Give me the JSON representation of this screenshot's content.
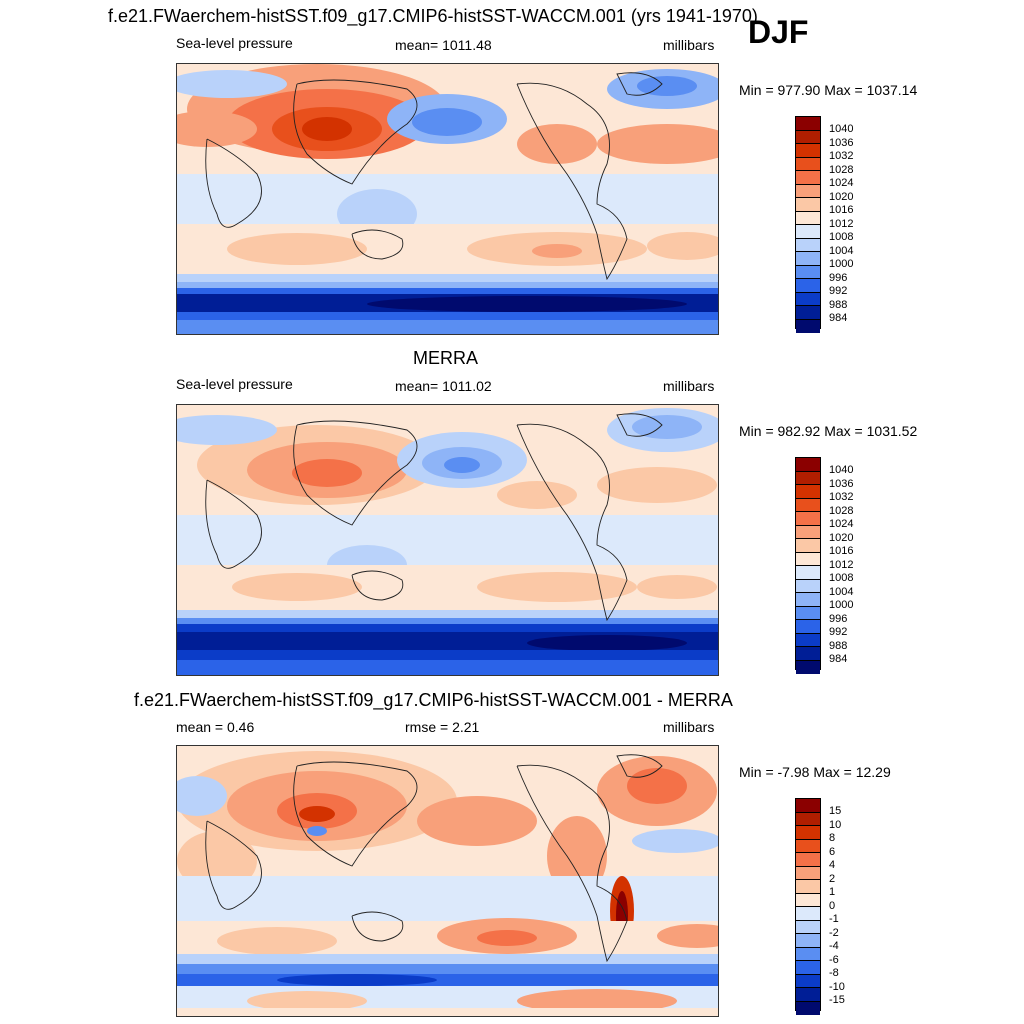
{
  "season": "DJF",
  "panels": [
    {
      "title": "f.e21.FWaerchem-histSST.f09_g17.CMIP6-histSST-WACCM.001 (yrs 1941-1970)",
      "left": "Sea-level pressure",
      "center": "mean= 1011.48",
      "right": "millibars",
      "minmax": "Min = 977.90 Max = 1037.14",
      "legend_labels": [
        "1040",
        "1036",
        "1032",
        "1028",
        "1024",
        "1020",
        "1016",
        "1012",
        "1008",
        "1004",
        "1000",
        "996",
        "992",
        "988",
        "984"
      ]
    },
    {
      "title": "MERRA",
      "left": "Sea-level pressure",
      "center": "mean= 1011.02",
      "right": "millibars",
      "minmax": "Min = 982.92 Max = 1031.52",
      "legend_labels": [
        "1040",
        "1036",
        "1032",
        "1028",
        "1024",
        "1020",
        "1016",
        "1012",
        "1008",
        "1004",
        "1000",
        "996",
        "992",
        "988",
        "984"
      ]
    },
    {
      "title": "f.e21.FWaerchem-histSST.f09_g17.CMIP6-histSST-WACCM.001 - MERRA",
      "left": "mean =   0.46",
      "center": "rmse =   2.21",
      "right": "millibars",
      "minmax": "Min =  -7.98 Max =  12.29",
      "legend_labels": [
        "15",
        "10",
        "8",
        "6",
        "4",
        "2",
        "1",
        "0",
        "-1",
        "-2",
        "-4",
        "-6",
        "-8",
        "-10",
        "-15"
      ]
    }
  ],
  "colors": {
    "scale": [
      "#8b0000",
      "#b01e00",
      "#d33200",
      "#e8501c",
      "#f47148",
      "#f8a07a",
      "#fbc8a6",
      "#fde7d6",
      "#dce9fb",
      "#b9d2fa",
      "#8eb4f7",
      "#5a8ef2",
      "#2b63e8",
      "#0b3cc8",
      "#001e96",
      "#000a6e"
    ]
  }
}
